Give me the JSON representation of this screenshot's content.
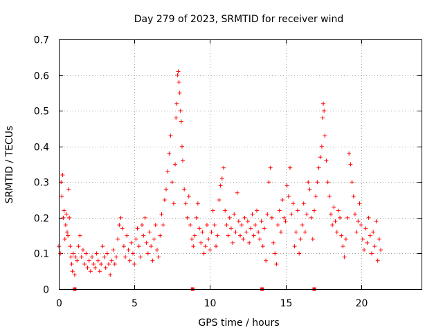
{
  "chart_data": {
    "type": "scatter",
    "title": "Day 279 of 2023, SRMTID for receiver wind",
    "xlabel": "GPS time / hours",
    "ylabel": "SRMTID / TECUs",
    "xlim": [
      0,
      24
    ],
    "ylim": [
      0,
      0.7
    ],
    "x_ticks": [
      0,
      5,
      10,
      15,
      20
    ],
    "x_tick_labels": [
      "0",
      "5",
      "10",
      "15",
      "20"
    ],
    "y_ticks": [
      0,
      0.1,
      0.2,
      0.3,
      0.4,
      0.5,
      0.6,
      0.7
    ],
    "y_tick_labels": [
      "0",
      "0.1",
      "0.2",
      "0.3",
      "0.4",
      "0.5",
      "0.6",
      "0.7"
    ],
    "grid": true,
    "marker": "+",
    "color": "#ff0000",
    "series": [
      {
        "name": "SRMTID",
        "points": [
          [
            0.0,
            0.12
          ],
          [
            0.1,
            0.1
          ],
          [
            0.15,
            0.3
          ],
          [
            0.2,
            0.26
          ],
          [
            0.25,
            0.32
          ],
          [
            0.3,
            0.2
          ],
          [
            0.35,
            0.22
          ],
          [
            0.4,
            0.14
          ],
          [
            0.45,
            0.18
          ],
          [
            0.5,
            0.21
          ],
          [
            0.55,
            0.16
          ],
          [
            0.6,
            0.15
          ],
          [
            0.65,
            0.28
          ],
          [
            0.7,
            0.2
          ],
          [
            0.75,
            0.12
          ],
          [
            0.8,
            0.09
          ],
          [
            0.85,
            0.07
          ],
          [
            0.9,
            0.05
          ],
          [
            0.95,
            0.1
          ],
          [
            1.05,
            0.04
          ],
          [
            1.1,
            0.09
          ],
          [
            1.2,
            0.08
          ],
          [
            1.3,
            0.12
          ],
          [
            1.4,
            0.15
          ],
          [
            1.5,
            0.09
          ],
          [
            1.6,
            0.11
          ],
          [
            1.7,
            0.07
          ],
          [
            1.8,
            0.1
          ],
          [
            1.9,
            0.06
          ],
          [
            2.0,
            0.08
          ],
          [
            2.1,
            0.05
          ],
          [
            2.2,
            0.09
          ],
          [
            2.3,
            0.07
          ],
          [
            2.4,
            0.06
          ],
          [
            2.5,
            0.1
          ],
          [
            2.6,
            0.08
          ],
          [
            2.7,
            0.05
          ],
          [
            2.8,
            0.07
          ],
          [
            2.9,
            0.12
          ],
          [
            3.0,
            0.09
          ],
          [
            3.1,
            0.06
          ],
          [
            3.2,
            0.1
          ],
          [
            3.3,
            0.07
          ],
          [
            3.4,
            0.04
          ],
          [
            3.5,
            0.08
          ],
          [
            3.6,
            0.11
          ],
          [
            3.7,
            0.07
          ],
          [
            3.8,
            0.09
          ],
          [
            3.9,
            0.14
          ],
          [
            4.0,
            0.18
          ],
          [
            4.1,
            0.2
          ],
          [
            4.2,
            0.17
          ],
          [
            4.3,
            0.12
          ],
          [
            4.4,
            0.09
          ],
          [
            4.5,
            0.15
          ],
          [
            4.6,
            0.11
          ],
          [
            4.7,
            0.08
          ],
          [
            4.8,
            0.13
          ],
          [
            4.9,
            0.1
          ],
          [
            5.0,
            0.07
          ],
          [
            5.1,
            0.14
          ],
          [
            5.2,
            0.17
          ],
          [
            5.3,
            0.12
          ],
          [
            5.4,
            0.09
          ],
          [
            5.5,
            0.18
          ],
          [
            5.6,
            0.15
          ],
          [
            5.7,
            0.2
          ],
          [
            5.8,
            0.13
          ],
          [
            5.9,
            0.1
          ],
          [
            6.0,
            0.16
          ],
          [
            6.1,
            0.12
          ],
          [
            6.2,
            0.08
          ],
          [
            6.3,
            0.14
          ],
          [
            6.4,
            0.18
          ],
          [
            6.5,
            0.11
          ],
          [
            6.6,
            0.09
          ],
          [
            6.7,
            0.15
          ],
          [
            6.8,
            0.21
          ],
          [
            6.9,
            0.18
          ],
          [
            7.0,
            0.25
          ],
          [
            7.1,
            0.28
          ],
          [
            7.2,
            0.33
          ],
          [
            7.3,
            0.38
          ],
          [
            7.4,
            0.43
          ],
          [
            7.5,
            0.3
          ],
          [
            7.6,
            0.24
          ],
          [
            7.7,
            0.35
          ],
          [
            7.75,
            0.48
          ],
          [
            7.8,
            0.52
          ],
          [
            7.85,
            0.6
          ],
          [
            7.9,
            0.61
          ],
          [
            7.95,
            0.58
          ],
          [
            8.0,
            0.55
          ],
          [
            8.05,
            0.5
          ],
          [
            8.1,
            0.47
          ],
          [
            8.15,
            0.4
          ],
          [
            8.2,
            0.36
          ],
          [
            8.3,
            0.28
          ],
          [
            8.4,
            0.24
          ],
          [
            8.5,
            0.2
          ],
          [
            8.6,
            0.26
          ],
          [
            8.7,
            0.18
          ],
          [
            8.8,
            0.14
          ],
          [
            8.9,
            0.12
          ],
          [
            9.0,
            0.15
          ],
          [
            9.1,
            0.2
          ],
          [
            9.2,
            0.24
          ],
          [
            9.3,
            0.17
          ],
          [
            9.4,
            0.13
          ],
          [
            9.5,
            0.16
          ],
          [
            9.6,
            0.1
          ],
          [
            9.7,
            0.12
          ],
          [
            9.8,
            0.18
          ],
          [
            9.9,
            0.14
          ],
          [
            10.0,
            0.11
          ],
          [
            10.1,
            0.16
          ],
          [
            10.2,
            0.22
          ],
          [
            10.3,
            0.18
          ],
          [
            10.4,
            0.12
          ],
          [
            10.5,
            0.15
          ],
          [
            10.6,
            0.25
          ],
          [
            10.7,
            0.29
          ],
          [
            10.8,
            0.31
          ],
          [
            10.9,
            0.34
          ],
          [
            11.0,
            0.22
          ],
          [
            11.1,
            0.18
          ],
          [
            11.2,
            0.15
          ],
          [
            11.3,
            0.2
          ],
          [
            11.4,
            0.17
          ],
          [
            11.5,
            0.13
          ],
          [
            11.6,
            0.21
          ],
          [
            11.7,
            0.16
          ],
          [
            11.8,
            0.27
          ],
          [
            11.9,
            0.19
          ],
          [
            12.0,
            0.15
          ],
          [
            12.1,
            0.18
          ],
          [
            12.2,
            0.14
          ],
          [
            12.3,
            0.2
          ],
          [
            12.4,
            0.16
          ],
          [
            12.5,
            0.19
          ],
          [
            12.6,
            0.13
          ],
          [
            12.7,
            0.17
          ],
          [
            12.8,
            0.21
          ],
          [
            12.9,
            0.15
          ],
          [
            13.0,
            0.18
          ],
          [
            13.1,
            0.22
          ],
          [
            13.2,
            0.16
          ],
          [
            13.3,
            0.14
          ],
          [
            13.4,
            0.19
          ],
          [
            13.5,
            0.12
          ],
          [
            13.6,
            0.17
          ],
          [
            13.7,
            0.08
          ],
          [
            13.8,
            0.21
          ],
          [
            13.9,
            0.3
          ],
          [
            14.0,
            0.34
          ],
          [
            14.1,
            0.2
          ],
          [
            14.2,
            0.13
          ],
          [
            14.3,
            0.1
          ],
          [
            14.4,
            0.07
          ],
          [
            14.5,
            0.18
          ],
          [
            14.6,
            0.22
          ],
          [
            14.7,
            0.16
          ],
          [
            14.8,
            0.25
          ],
          [
            14.9,
            0.2
          ],
          [
            15.0,
            0.19
          ],
          [
            15.1,
            0.29
          ],
          [
            15.2,
            0.26
          ],
          [
            15.3,
            0.34
          ],
          [
            15.4,
            0.21
          ],
          [
            15.5,
            0.24
          ],
          [
            15.6,
            0.12
          ],
          [
            15.7,
            0.16
          ],
          [
            15.8,
            0.22
          ],
          [
            15.9,
            0.1
          ],
          [
            16.0,
            0.14
          ],
          [
            16.1,
            0.18
          ],
          [
            16.2,
            0.24
          ],
          [
            16.3,
            0.16
          ],
          [
            16.4,
            0.21
          ],
          [
            16.5,
            0.3
          ],
          [
            16.6,
            0.28
          ],
          [
            16.7,
            0.2
          ],
          [
            16.8,
            0.14
          ],
          [
            16.9,
            0.22
          ],
          [
            17.0,
            0.26
          ],
          [
            17.1,
            0.3
          ],
          [
            17.2,
            0.34
          ],
          [
            17.3,
            0.37
          ],
          [
            17.4,
            0.4
          ],
          [
            17.45,
            0.48
          ],
          [
            17.5,
            0.52
          ],
          [
            17.55,
            0.5
          ],
          [
            17.6,
            0.43
          ],
          [
            17.7,
            0.36
          ],
          [
            17.8,
            0.3
          ],
          [
            17.9,
            0.26
          ],
          [
            18.0,
            0.21
          ],
          [
            18.1,
            0.18
          ],
          [
            18.2,
            0.23
          ],
          [
            18.3,
            0.19
          ],
          [
            18.4,
            0.16
          ],
          [
            18.5,
            0.22
          ],
          [
            18.6,
            0.2
          ],
          [
            18.7,
            0.15
          ],
          [
            18.8,
            0.12
          ],
          [
            18.9,
            0.09
          ],
          [
            19.0,
            0.14
          ],
          [
            19.1,
            0.2
          ],
          [
            19.2,
            0.38
          ],
          [
            19.3,
            0.35
          ],
          [
            19.4,
            0.3
          ],
          [
            19.5,
            0.26
          ],
          [
            19.6,
            0.21
          ],
          [
            19.7,
            0.16
          ],
          [
            19.8,
            0.19
          ],
          [
            19.9,
            0.24
          ],
          [
            20.0,
            0.18
          ],
          [
            20.1,
            0.14
          ],
          [
            20.2,
            0.11
          ],
          [
            20.3,
            0.17
          ],
          [
            20.4,
            0.13
          ],
          [
            20.5,
            0.2
          ],
          [
            20.6,
            0.15
          ],
          [
            20.7,
            0.1
          ],
          [
            20.8,
            0.16
          ],
          [
            20.9,
            0.12
          ],
          [
            21.0,
            0.19
          ],
          [
            21.1,
            0.08
          ],
          [
            21.2,
            0.14
          ],
          [
            21.3,
            0.11
          ]
        ]
      }
    ],
    "gap_markers_x": [
      1.05,
      8.85,
      13.45,
      16.9
    ]
  }
}
